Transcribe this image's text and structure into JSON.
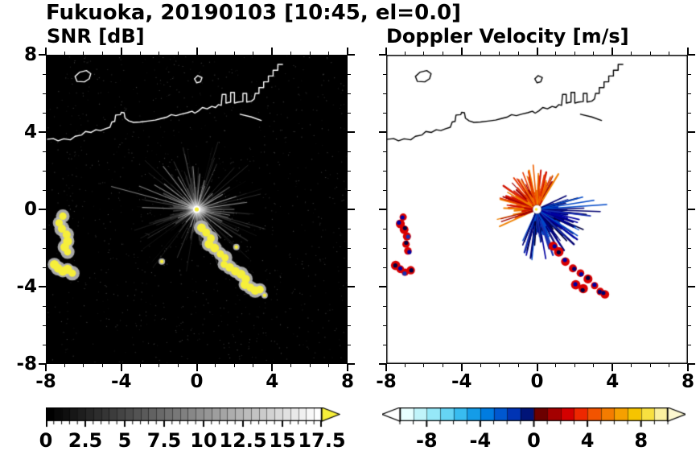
{
  "title": "Fukuoka, 20190103 [10:45, el=0.0]",
  "panels": [
    {
      "title": "SNR [dB]"
    },
    {
      "title": "Doppler Velocity [m/s]"
    }
  ],
  "chart_data": {
    "type": "heatmap",
    "subtype": "radar-ppi-dual-panel",
    "station": "Fukuoka",
    "datetime_label": "20190103 [10:45, el=0.0]",
    "axes": {
      "xlim": [
        -8,
        8
      ],
      "ylim": [
        -8,
        8
      ],
      "major_ticks": [
        -8,
        -4,
        0,
        4,
        8
      ],
      "minor_step": 1,
      "x_tick_labels": [
        "-8",
        "-4",
        "0",
        "4",
        "8"
      ],
      "y_tick_labels": [
        "-8",
        "-4",
        "0",
        "4",
        "8"
      ]
    },
    "radar_center": [
      0,
      0
    ],
    "coastline": {
      "main": [
        [
          -8,
          3.62
        ],
        [
          -7.6,
          3.66
        ],
        [
          -7.35,
          3.55
        ],
        [
          -7.05,
          3.65
        ],
        [
          -6.7,
          3.6
        ],
        [
          -6.45,
          3.78
        ],
        [
          -6.1,
          3.85
        ],
        [
          -5.9,
          4.03
        ],
        [
          -5.6,
          3.98
        ],
        [
          -5.35,
          4.12
        ],
        [
          -5.1,
          4.08
        ],
        [
          -4.85,
          4.17
        ],
        [
          -4.6,
          4.25
        ],
        [
          -4.5,
          4.52
        ],
        [
          -4.35,
          4.55
        ],
        [
          -4.3,
          4.88
        ],
        [
          -4.05,
          4.9
        ],
        [
          -4.0,
          5.02
        ],
        [
          -3.85,
          5.0
        ],
        [
          -3.8,
          4.72
        ],
        [
          -3.6,
          4.58
        ],
        [
          -3.35,
          4.5
        ],
        [
          -3.0,
          4.52
        ],
        [
          -2.6,
          4.57
        ],
        [
          -2.2,
          4.62
        ],
        [
          -1.9,
          4.7
        ],
        [
          -1.6,
          4.77
        ],
        [
          -1.35,
          4.9
        ],
        [
          -1.1,
          4.85
        ],
        [
          -0.8,
          4.93
        ],
        [
          -0.5,
          5.0
        ],
        [
          -0.25,
          5.08
        ],
        [
          -0.1,
          4.98
        ],
        [
          0.1,
          5.1
        ],
        [
          0.3,
          5.27
        ],
        [
          0.55,
          5.2
        ],
        [
          0.8,
          5.33
        ],
        [
          1.0,
          5.27
        ],
        [
          1.15,
          5.42
        ],
        [
          1.3,
          5.38
        ],
        [
          1.35,
          5.95
        ],
        [
          1.55,
          5.95
        ],
        [
          1.55,
          5.5
        ],
        [
          1.8,
          5.55
        ],
        [
          1.8,
          6.05
        ],
        [
          2.0,
          6.05
        ],
        [
          2.0,
          5.5
        ],
        [
          2.2,
          5.55
        ],
        [
          2.45,
          5.58
        ],
        [
          2.45,
          6.0
        ],
        [
          2.65,
          6.0
        ],
        [
          2.65,
          5.55
        ],
        [
          2.9,
          5.6
        ],
        [
          3.05,
          5.72
        ],
        [
          3.1,
          6.0
        ],
        [
          3.3,
          6.0
        ],
        [
          3.3,
          6.3
        ],
        [
          3.55,
          6.3
        ],
        [
          3.55,
          6.6
        ],
        [
          3.8,
          6.6
        ],
        [
          3.8,
          6.9
        ],
        [
          4.05,
          6.9
        ],
        [
          4.05,
          7.2
        ],
        [
          4.3,
          7.2
        ],
        [
          4.3,
          7.5
        ],
        [
          4.55,
          7.5
        ]
      ],
      "island": [
        [
          -6.35,
          6.62
        ],
        [
          -6.45,
          6.88
        ],
        [
          -6.2,
          7.1
        ],
        [
          -5.85,
          7.18
        ],
        [
          -5.62,
          7.02
        ],
        [
          -5.7,
          6.76
        ],
        [
          -5.95,
          6.6
        ]
      ],
      "islet": [
        [
          0.0,
          6.55
        ],
        [
          -0.12,
          6.75
        ],
        [
          0.05,
          6.92
        ],
        [
          0.28,
          6.82
        ],
        [
          0.2,
          6.6
        ]
      ],
      "breakwater": [
        [
          2.3,
          4.92
        ],
        [
          2.9,
          4.78
        ],
        [
          3.42,
          4.6
        ]
      ]
    },
    "snr_panel": {
      "background": "#000000",
      "streak_color": "#d7d7d7",
      "high_snr_color": "#f6ef3a",
      "bright_rays": [
        [
          165,
          4.7
        ],
        [
          158,
          3.3
        ],
        [
          150,
          2.6
        ],
        [
          142,
          2.2
        ],
        [
          128,
          2.9
        ],
        [
          120,
          2.0
        ],
        [
          95,
          2.3
        ],
        [
          85,
          1.9
        ],
        [
          75,
          1.6
        ],
        [
          60,
          1.4
        ],
        [
          45,
          1.2
        ],
        [
          30,
          1.6
        ],
        [
          18,
          2.2
        ],
        [
          8,
          2.7
        ],
        [
          0,
          2.0
        ],
        [
          -10,
          1.8
        ],
        [
          -25,
          1.5
        ],
        [
          -38,
          2.4
        ],
        [
          -50,
          2.0
        ],
        [
          -62,
          1.7
        ],
        [
          -75,
          1.4
        ],
        [
          -90,
          1.2
        ],
        [
          -110,
          1.0
        ],
        [
          -130,
          0.9
        ],
        [
          178,
          2.9
        ],
        [
          -155,
          1.1
        ]
      ],
      "yellow_chain_left": [
        [
          -7.1,
          -0.35
        ],
        [
          -7.3,
          -0.7
        ],
        [
          -7.15,
          -1.0
        ],
        [
          -6.9,
          -1.3
        ],
        [
          -6.85,
          -1.65
        ],
        [
          -7.0,
          -1.95
        ],
        [
          -6.85,
          -2.2
        ]
      ],
      "yellow_chain_left2": [
        [
          -7.55,
          -2.85
        ],
        [
          -7.35,
          -3.05
        ],
        [
          -7.1,
          -3.2
        ],
        [
          -6.85,
          -3.1
        ],
        [
          -6.6,
          -3.3
        ]
      ],
      "yellow_chain_diag": [
        [
          0.25,
          -0.95
        ],
        [
          0.5,
          -1.2
        ],
        [
          0.75,
          -1.5
        ],
        [
          0.65,
          -1.8
        ],
        [
          0.95,
          -2.0
        ],
        [
          1.25,
          -2.3
        ],
        [
          1.5,
          -2.5
        ],
        [
          1.45,
          -2.85
        ],
        [
          1.75,
          -3.0
        ],
        [
          2.05,
          -3.2
        ],
        [
          2.35,
          -3.35
        ],
        [
          2.6,
          -3.6
        ],
        [
          2.55,
          -3.9
        ],
        [
          2.85,
          -4.05
        ],
        [
          3.1,
          -4.2
        ],
        [
          3.35,
          -4.15
        ]
      ],
      "yellow_dots": [
        [
          3.6,
          -4.45
        ],
        [
          -1.85,
          -2.7
        ],
        [
          2.1,
          -1.95
        ]
      ]
    },
    "doppler_panel": {
      "background": "#ffffff",
      "positive_colors": [
        "#a00000",
        "#d01000",
        "#e83800",
        "#f06000",
        "#f08000"
      ],
      "negative_colors": [
        "#000040",
        "#000070",
        "#0000a0",
        "#1830b0",
        "#0048c8"
      ],
      "positive_fan_deg": [
        58,
        205
      ],
      "negative_fan_deg": [
        -115,
        20
      ],
      "positive_long": [
        [
          95,
          2.35
        ],
        [
          103,
          2.05
        ],
        [
          88,
          1.9
        ],
        [
          118,
          1.75
        ],
        [
          132,
          1.55
        ],
        [
          150,
          1.8
        ],
        [
          163,
          2.05
        ],
        [
          172,
          1.6
        ],
        [
          70,
          1.5
        ],
        [
          200,
          0.9
        ]
      ],
      "negative_long": [
        [
          4,
          3.7
        ],
        [
          -2,
          3.35
        ],
        [
          9,
          3.05
        ],
        [
          -7,
          2.85
        ],
        [
          15,
          2.5
        ],
        [
          -18,
          2.25
        ],
        [
          -33,
          2.55
        ],
        [
          -44,
          2.15
        ],
        [
          -56,
          1.9
        ],
        [
          -68,
          1.6
        ],
        [
          -84,
          1.75
        ],
        [
          25,
          1.7
        ]
      ],
      "clusters": [
        [
          [
            -7.1,
            -0.4
          ],
          [
            -7.25,
            -0.75
          ],
          [
            -7.05,
            -1.05
          ],
          [
            -6.9,
            -1.4
          ],
          [
            -6.95,
            -1.8
          ],
          [
            -6.85,
            -2.15
          ]
        ],
        [
          [
            -7.5,
            -2.9
          ],
          [
            -7.25,
            -3.1
          ],
          [
            -7.0,
            -3.25
          ],
          [
            -6.7,
            -3.15
          ]
        ],
        [
          [
            1.15,
            -2.2
          ],
          [
            1.5,
            -2.7
          ],
          [
            1.9,
            -3.05
          ],
          [
            2.3,
            -3.3
          ],
          [
            2.7,
            -3.6
          ],
          [
            3.05,
            -3.95
          ],
          [
            3.35,
            -4.25
          ],
          [
            3.6,
            -4.4
          ],
          [
            2.05,
            -3.9
          ],
          [
            2.45,
            -4.1
          ],
          [
            0.85,
            -1.9
          ]
        ]
      ]
    },
    "colorbars": [
      {
        "name": "snr",
        "unit": "dB",
        "min": 0,
        "max": 17.5,
        "tick_values": [
          0,
          2.5,
          5,
          7.5,
          10,
          12.5,
          15,
          17.5
        ],
        "tick_labels": [
          "0",
          "2.5",
          "5",
          "7.5",
          "10",
          "12.5",
          "15",
          "17.5"
        ],
        "ramp": "black-to-white",
        "over_color": "#f6ef3a"
      },
      {
        "name": "doppler",
        "unit": "m/s",
        "min": -10,
        "max": 10,
        "tick_values": [
          -8,
          -4,
          0,
          4,
          8
        ],
        "tick_labels": [
          "-8",
          "-4",
          "0",
          "4",
          "8"
        ],
        "segment_colors": [
          "#e8ffff",
          "#c0f4fa",
          "#96e8f8",
          "#66d4f4",
          "#38bcf0",
          "#149ce8",
          "#007ce0",
          "#0058d0",
          "#0034b4",
          "#001478",
          "#6c0000",
          "#a40000",
          "#d40000",
          "#ee2800",
          "#f25400",
          "#f47c00",
          "#f6a000",
          "#f6c400",
          "#f8e040",
          "#faf0a0"
        ],
        "under_color": "#ffffff",
        "over_color": "#fdf8d0"
      }
    ]
  }
}
